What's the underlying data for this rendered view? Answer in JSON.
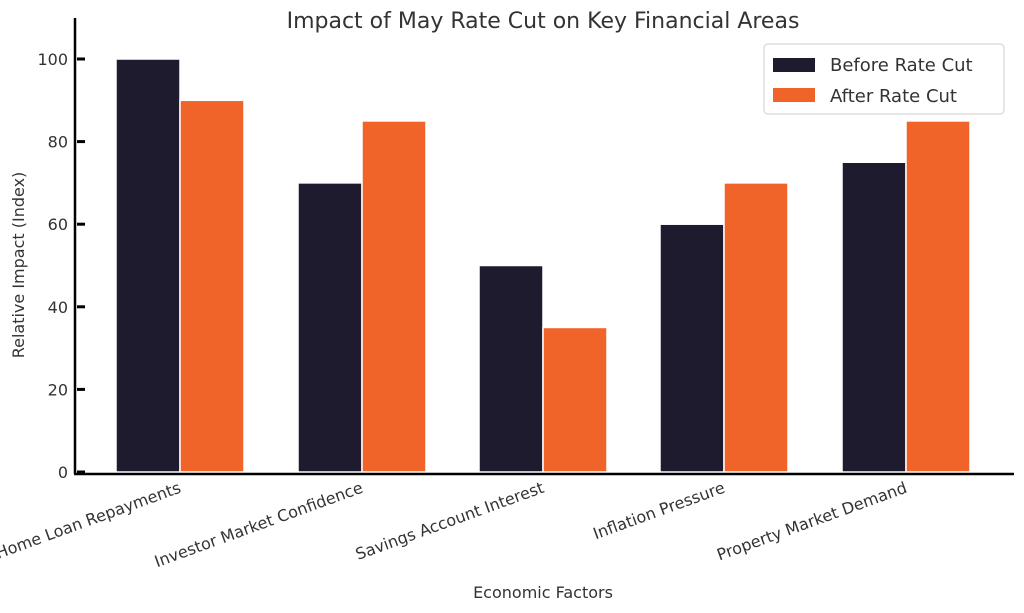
{
  "chart_data": {
    "type": "bar",
    "title": "Impact of May Rate Cut on Key Financial Areas",
    "xlabel": "Economic Factors",
    "ylabel": "Relative Impact (Index)",
    "categories": [
      "Home Loan Repayments",
      "Investor Market Confidence",
      "Savings Account Interest",
      "Inflation Pressure",
      "Property Market Demand"
    ],
    "series": [
      {
        "name": "Before Rate Cut",
        "color": "#1f1b2e",
        "values": [
          100,
          70,
          50,
          60,
          75
        ]
      },
      {
        "name": "After Rate Cut",
        "color": "#f0642a",
        "values": [
          90,
          85,
          35,
          70,
          85
        ]
      }
    ],
    "ylim": [
      0,
      105
    ],
    "yticks": [
      0,
      20,
      40,
      60,
      80,
      100
    ],
    "grid": false,
    "legend": "top-right"
  }
}
